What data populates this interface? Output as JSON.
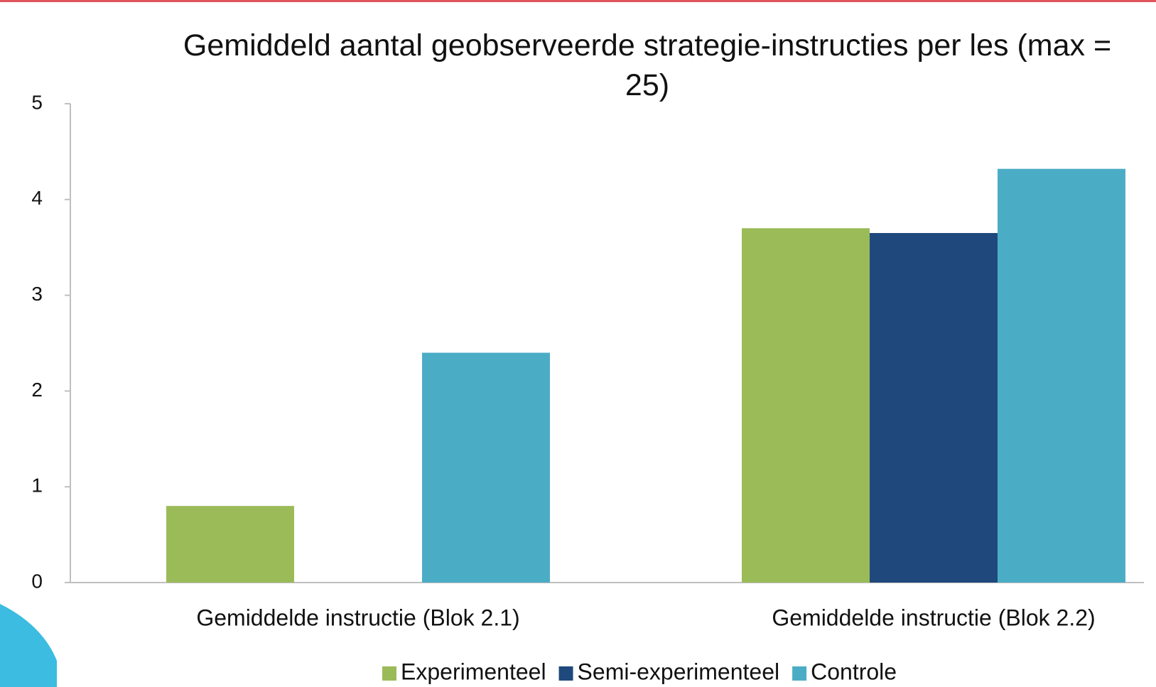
{
  "chart_data": {
    "type": "bar",
    "title": "Gemiddeld aantal geobserveerde strategie-instructies per les (max = 25)",
    "categories": [
      "Gemiddelde instructie (Blok 2.1)",
      "Gemiddelde instructie (Blok 2.2)"
    ],
    "series": [
      {
        "name": "Experimenteel",
        "color": "#9bbb59",
        "values": [
          0.8,
          3.7
        ]
      },
      {
        "name": "Semi-experimenteel",
        "color": "#1f497d",
        "values": [
          0,
          3.65
        ]
      },
      {
        "name": "Controle",
        "color": "#4bacc6",
        "values": [
          2.4,
          4.32
        ]
      }
    ],
    "ylim": [
      0,
      5
    ],
    "yticks": [
      0,
      1,
      2,
      3,
      4,
      5
    ],
    "grid": false,
    "legend": "bottom"
  }
}
